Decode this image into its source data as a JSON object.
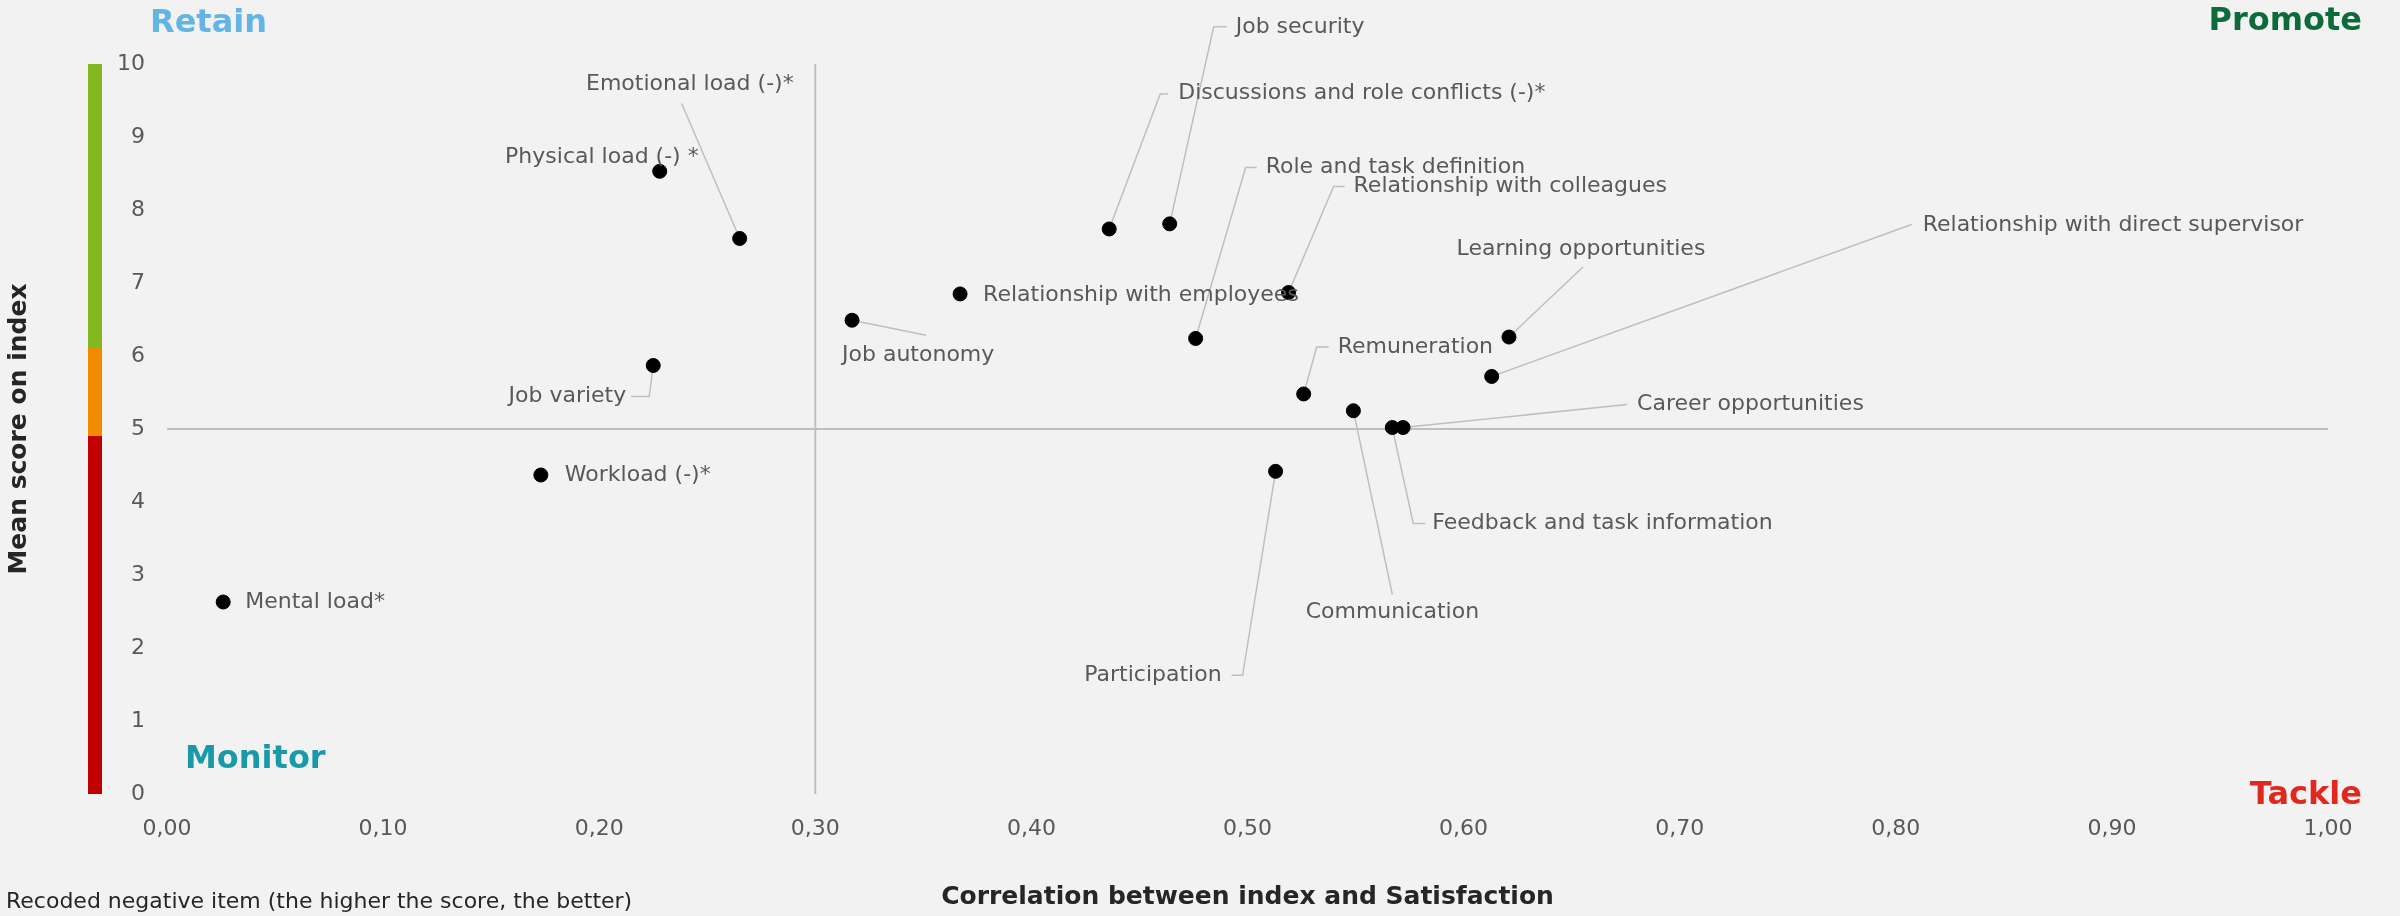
{
  "chart_data": {
    "type": "scatter",
    "xlabel": "Correlation between index and Satisfaction",
    "ylabel": "Mean score on index",
    "series": [
      {
        "color": "#000000",
        "x": [
          0.228,
          0.265,
          0.225,
          0.317,
          0.367,
          0.436,
          0.464,
          0.476,
          0.519,
          0.526,
          0.549,
          0.567,
          0.572,
          0.613,
          0.621,
          0.513,
          0.173,
          0.026
        ],
        "values": [
          8.53,
          7.61,
          5.87,
          6.49,
          6.85,
          7.74,
          7.81,
          6.24,
          6.87,
          5.48,
          5.25,
          5.02,
          5.02,
          5.72,
          6.26,
          4.42,
          4.37,
          2.63
        ]
      }
    ],
    "marker": "circle",
    "legend": false,
    "grid": false,
    "xlim": [
      0,
      1
    ],
    "xticks": [
      {
        "value": 0,
        "label": "0,00"
      },
      {
        "value": 0.1,
        "label": "0,10"
      },
      {
        "value": 0.2,
        "label": "0,20"
      },
      {
        "value": 0.3,
        "label": "0,30"
      },
      {
        "value": 0.4,
        "label": "0,40"
      },
      {
        "value": 0.5,
        "label": "0,50"
      },
      {
        "value": 0.6,
        "label": "0,60"
      },
      {
        "value": 0.7,
        "label": "0,70"
      },
      {
        "value": 0.8,
        "label": "0,80"
      },
      {
        "value": 0.9,
        "label": "0,90"
      },
      {
        "value": 1,
        "label": "1,00"
      }
    ],
    "ylim": [
      0,
      10
    ],
    "yticks": [
      0,
      1,
      2,
      3,
      4,
      5,
      6,
      7,
      8,
      9,
      10
    ],
    "ref_lines": [
      {
        "axis": "x",
        "value": 0.3,
        "color": "#bfbfbf"
      },
      {
        "axis": "y",
        "value": 5,
        "color": "#bfbfbf"
      }
    ],
    "annotations": [
      {
        "text": "Physical load (-) *",
        "x": 0.228,
        "y": 8.53
      },
      {
        "text": "Emotional load (-)*",
        "x": 0.265,
        "y": 7.61
      },
      {
        "text": "Job variety",
        "x": 0.225,
        "y": 5.87
      },
      {
        "text": "Job autonomy",
        "x": 0.317,
        "y": 6.49
      },
      {
        "text": "Relationship with employees",
        "x": 0.367,
        "y": 6.85
      },
      {
        "text": "Discussions and role conflicts (-)*",
        "x": 0.436,
        "y": 7.74
      },
      {
        "text": "Job security",
        "x": 0.464,
        "y": 7.81
      },
      {
        "text": "Role and task definition",
        "x": 0.476,
        "y": 6.24
      },
      {
        "text": "Relationship with colleagues",
        "x": 0.519,
        "y": 6.87
      },
      {
        "text": "Remuneration",
        "x": 0.526,
        "y": 5.48
      },
      {
        "text": "Communication",
        "x": 0.549,
        "y": 5.25
      },
      {
        "text": "Feedback and task information",
        "x": 0.567,
        "y": 5.02
      },
      {
        "text": "Career opportunities",
        "x": 0.572,
        "y": 5.02
      },
      {
        "text": "Relationship with direct supervisor",
        "x": 0.613,
        "y": 5.72
      },
      {
        "text": "Learning opportunities",
        "x": 0.621,
        "y": 6.26
      },
      {
        "text": "Participation",
        "x": 0.513,
        "y": 4.42
      },
      {
        "text": "Workload (-)*",
        "x": 0.173,
        "y": 4.37
      },
      {
        "text": "Mental load*",
        "x": 0.026,
        "y": 2.63
      },
      "Retain",
      "Promote",
      "Monitor",
      "Tackle",
      "Recoded negative item (the higher the score, the better)"
    ]
  }
}
